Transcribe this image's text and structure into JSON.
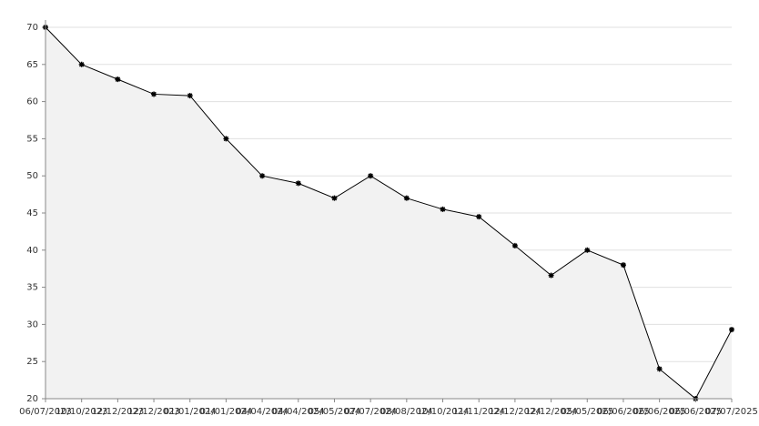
{
  "chart_data": {
    "type": "line",
    "categories": [
      "06/07/2023",
      "10/10/2023",
      "12/12/2023",
      "12/12/2023",
      "01/01/2024",
      "01/01/2024",
      "04/04/2024",
      "04/04/2024",
      "05/05/2024",
      "07/07/2024",
      "08/08/2024",
      "10/10/2024",
      "11/11/2024",
      "12/12/2024",
      "12/12/2024",
      "05/05/2025",
      "06/06/2025",
      "06/06/2025",
      "06/06/2025",
      "07/07/2025"
    ],
    "values": [
      70,
      65,
      63,
      61,
      60.8,
      55,
      50,
      49,
      47,
      50,
      47,
      45.5,
      44.5,
      40.6,
      36.6,
      40,
      38,
      24,
      20,
      29.3
    ],
    "color": "#000000",
    "fill": "#f2f2f2",
    "ylim": [
      20,
      70
    ],
    "yticks": [
      20,
      25,
      30,
      35,
      40,
      45,
      50,
      55,
      60,
      65,
      70
    ],
    "grid": true
  }
}
